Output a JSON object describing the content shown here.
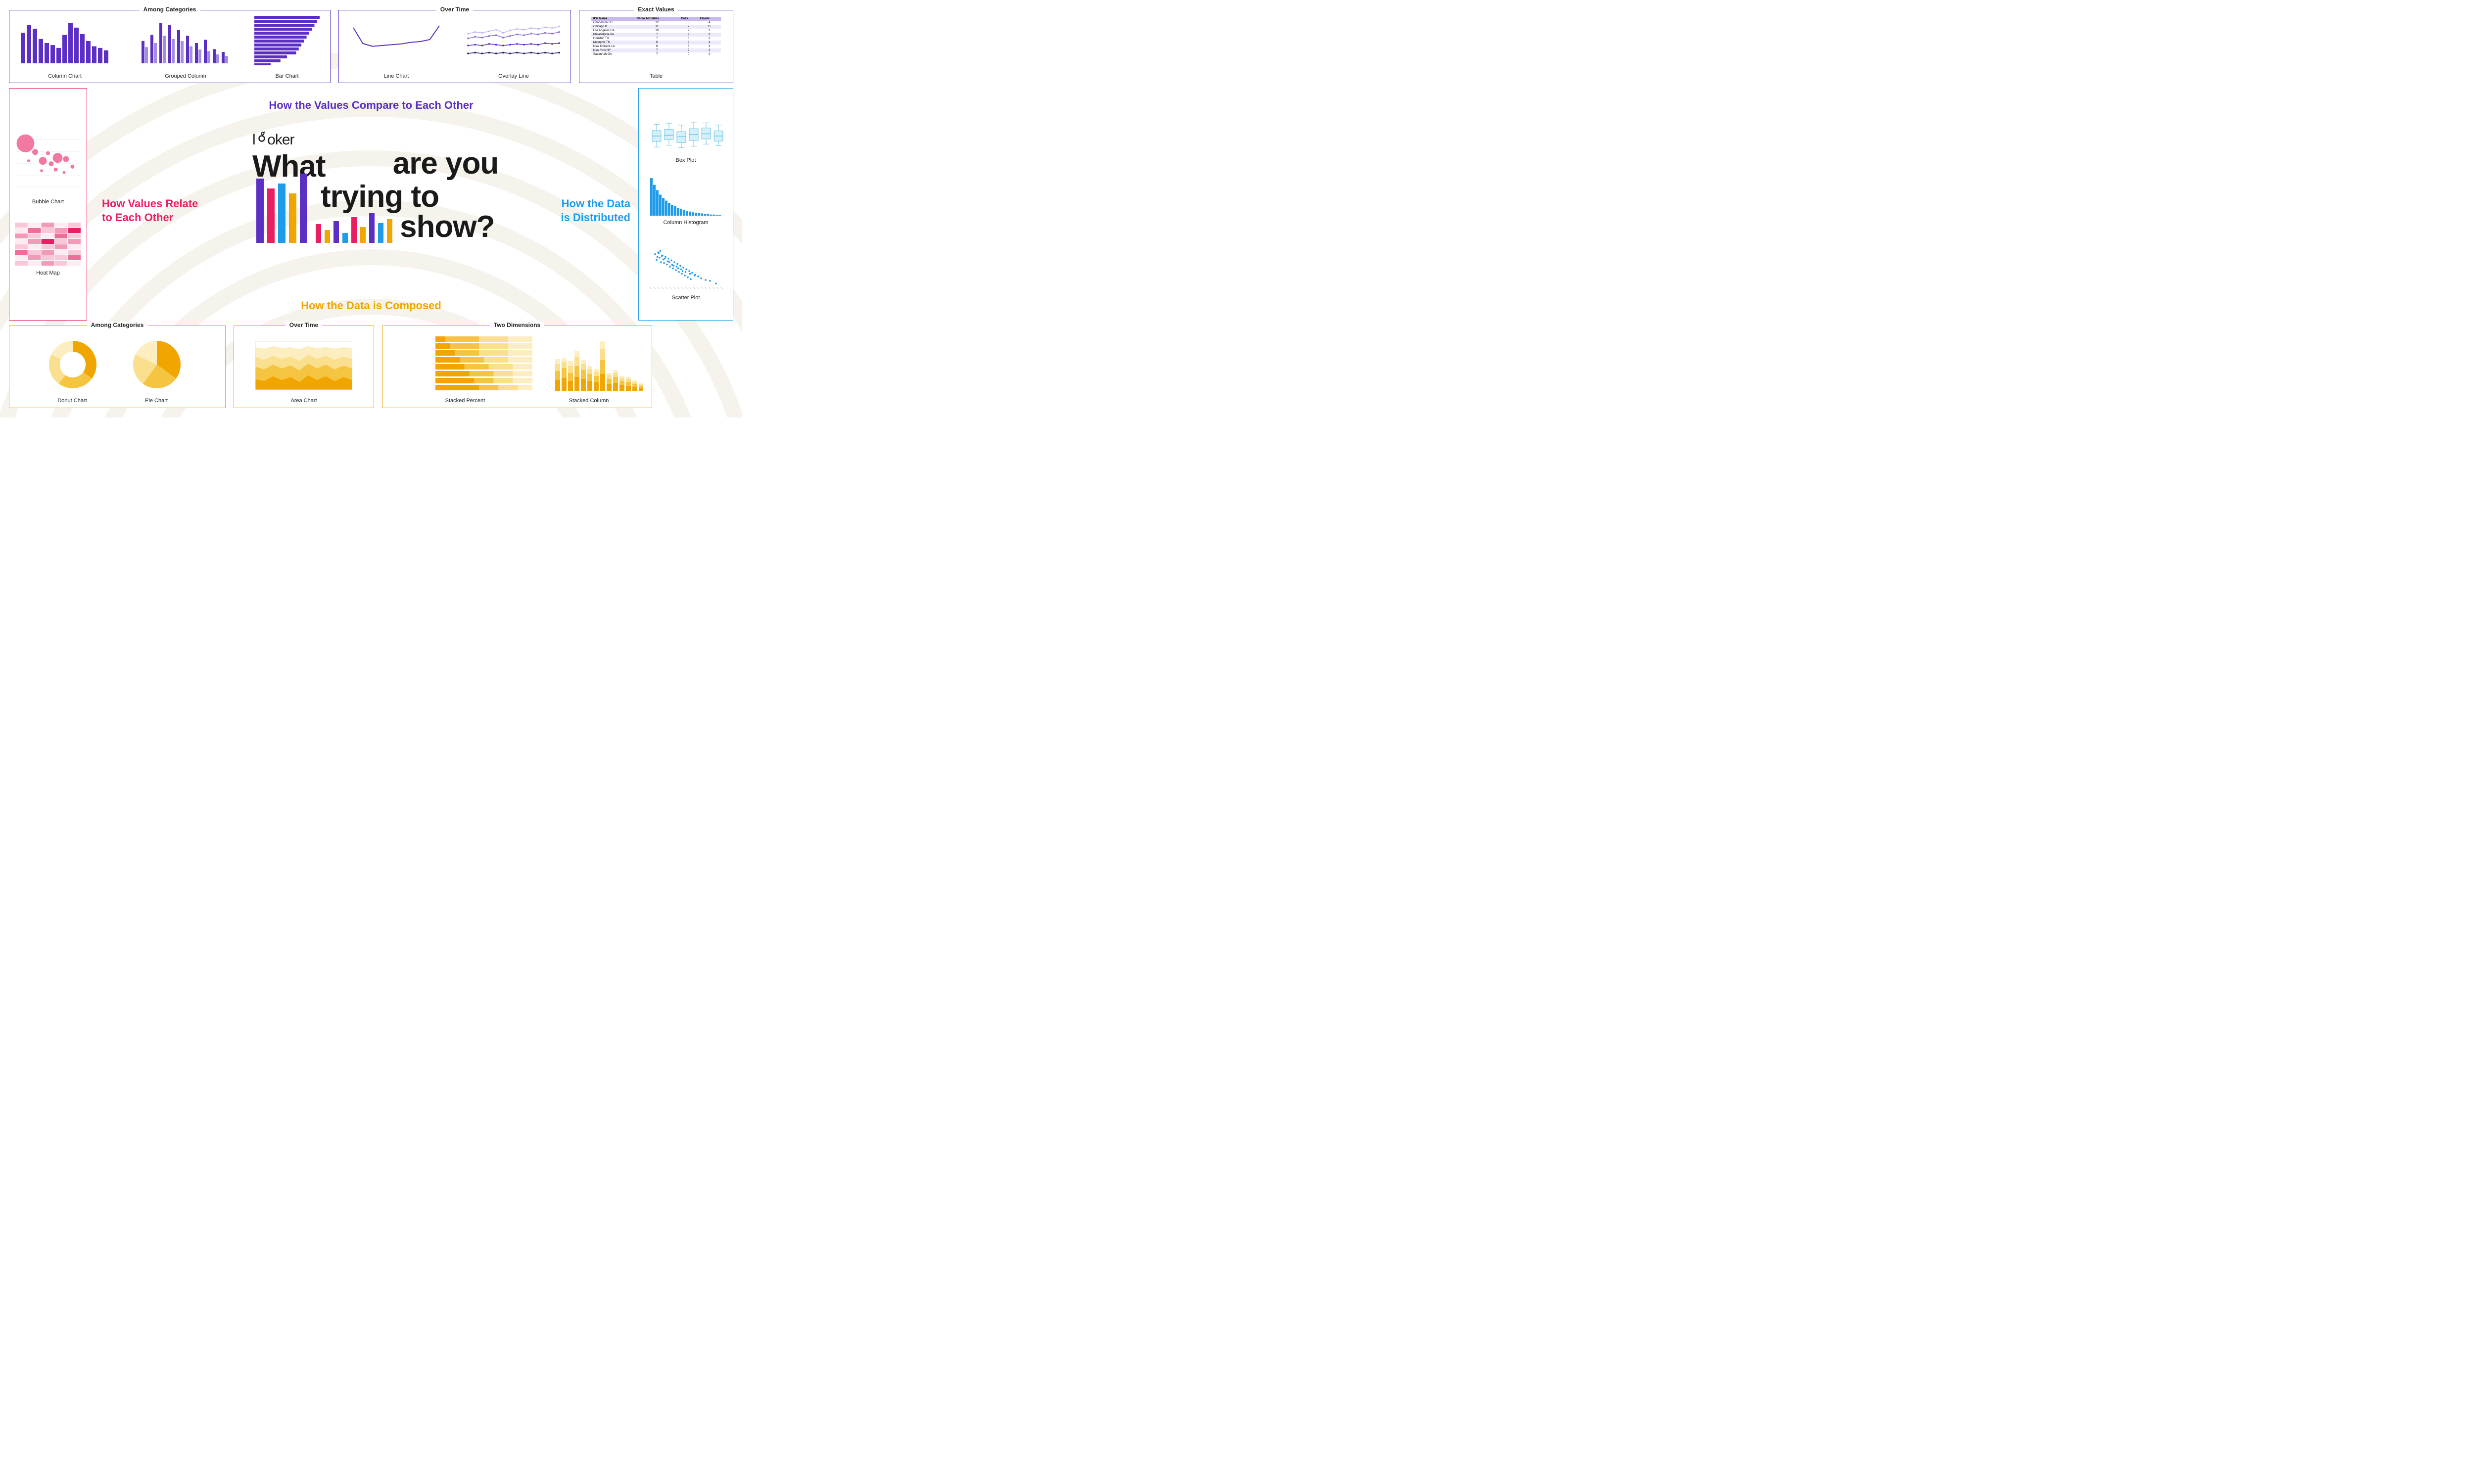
{
  "brand": "looker",
  "hero_line1": "What",
  "hero_line2": "are you",
  "hero_line3": "trying to",
  "hero_line4": "show?",
  "sections": {
    "compare": {
      "title": "How the Values Compare to Each Other",
      "color": "#5b2ec4"
    },
    "relate": {
      "title": "How Values Relate to Each Other",
      "color": "#e91e63"
    },
    "distrib": {
      "title": "How the Data is Distributed",
      "color": "#1e9be9"
    },
    "compose": {
      "title": "How the Data is Composed",
      "color": "#f0a500"
    }
  },
  "groups": {
    "compare_cat": "Among Categories",
    "compare_time": "Over Time",
    "compare_exact": "Exact Values",
    "compose_cat": "Among Categories",
    "compose_time": "Over Time",
    "compose_two": "Two Dimensions"
  },
  "charts": {
    "column": {
      "label": "Column Chart",
      "color": "#5b2ec4",
      "values": [
        75,
        95,
        85,
        60,
        50,
        45,
        38,
        70,
        100,
        88,
        72,
        55,
        42,
        38,
        32
      ]
    },
    "grouped": {
      "label": "Grouped Column",
      "colors": [
        "#5b2ec4",
        "#a48de0"
      ],
      "pairs": [
        [
          55,
          40
        ],
        [
          70,
          50
        ],
        [
          100,
          68
        ],
        [
          95,
          60
        ],
        [
          82,
          55
        ],
        [
          68,
          42
        ],
        [
          50,
          34
        ],
        [
          58,
          30
        ],
        [
          35,
          22
        ],
        [
          28,
          18
        ]
      ]
    },
    "bar": {
      "label": "Bar Chart",
      "color": "#5b2ec4",
      "values": [
        100,
        96,
        92,
        88,
        84,
        80,
        76,
        72,
        68,
        64,
        50,
        40,
        25
      ]
    },
    "line": {
      "label": "Line Chart",
      "color": "#5b2ec4",
      "points": [
        85,
        45,
        38,
        40,
        42,
        44,
        48,
        50,
        55,
        90
      ]
    },
    "overlay": {
      "label": "Overlay Line",
      "colors": [
        "#c7b8f0",
        "#8b6dd8",
        "#5b2ec4",
        "#2a1560"
      ],
      "series": [
        [
          70,
          74,
          72,
          76,
          80,
          72,
          78,
          82,
          80,
          84,
          82,
          86,
          84,
          88
        ],
        [
          58,
          62,
          60,
          64,
          66,
          60,
          64,
          68,
          66,
          70,
          68,
          72,
          70,
          74
        ],
        [
          40,
          42,
          40,
          44,
          42,
          40,
          42,
          44,
          42,
          44,
          42,
          46,
          44,
          46
        ],
        [
          20,
          22,
          20,
          22,
          20,
          22,
          20,
          22,
          20,
          22,
          20,
          22,
          20,
          22
        ]
      ]
    },
    "table": {
      "label": "Table",
      "header_bg": "#c7b8f0",
      "alt_bg": "#eee9fa",
      "columns": [
        "ICR Name",
        "Radio Activities",
        "Calls",
        "Emails"
      ],
      "rows": [
        [
          "Charleston SC",
          "12",
          "8",
          "4"
        ],
        [
          "Chicago IL",
          "11",
          "7",
          "15"
        ],
        [
          "Los Angeles CA",
          "10",
          "9",
          "3"
        ],
        [
          "Philadelphia PA",
          "7",
          "9",
          "0"
        ],
        [
          "Houston TX",
          "7",
          "5",
          "2"
        ],
        [
          "Memphis TN",
          "6",
          "9",
          "4"
        ],
        [
          "New Orleans LA",
          "6",
          "8",
          "3"
        ],
        [
          "New York NY",
          "7",
          "2",
          "2"
        ],
        [
          "Savannah GA",
          "7",
          "0",
          "0"
        ]
      ]
    },
    "bubble": {
      "label": "Bubble Chart",
      "color": "#f06292",
      "points": [
        [
          15,
          85,
          18
        ],
        [
          30,
          70,
          6
        ],
        [
          42,
          55,
          8
        ],
        [
          55,
          50,
          5
        ],
        [
          65,
          60,
          10
        ],
        [
          78,
          58,
          6
        ],
        [
          88,
          45,
          4
        ],
        [
          62,
          40,
          4
        ],
        [
          40,
          38,
          3
        ],
        [
          75,
          35,
          3
        ],
        [
          50,
          68,
          4
        ],
        [
          20,
          55,
          3
        ]
      ]
    },
    "heatmap": {
      "label": "Heat Map",
      "base": "#f8c7d8",
      "scale": [
        "#fdecf1",
        "#f8c7d8",
        "#f29bb9",
        "#ec6f99",
        "#e91e63"
      ],
      "grid": [
        [
          1,
          0,
          2,
          0,
          1
        ],
        [
          0,
          3,
          1,
          2,
          4
        ],
        [
          2,
          1,
          0,
          3,
          1
        ],
        [
          0,
          2,
          4,
          1,
          2
        ],
        [
          1,
          0,
          1,
          2,
          0
        ],
        [
          3,
          1,
          2,
          0,
          1
        ],
        [
          0,
          2,
          1,
          1,
          3
        ],
        [
          1,
          0,
          2,
          1,
          0
        ]
      ]
    },
    "boxplot": {
      "label": "Box Plot",
      "color": "#6bc5e8",
      "boxes": [
        [
          20,
          35,
          50,
          65,
          82
        ],
        [
          25,
          40,
          52,
          68,
          85
        ],
        [
          18,
          32,
          48,
          62,
          80
        ],
        [
          22,
          38,
          54,
          70,
          88
        ],
        [
          28,
          42,
          56,
          72,
          86
        ],
        [
          24,
          36,
          50,
          64,
          80
        ]
      ]
    },
    "histogram": {
      "label": "Column Histogram",
      "color": "#1e9be9",
      "values": [
        100,
        82,
        68,
        56,
        47,
        40,
        34,
        29,
        25,
        21,
        18,
        15,
        13,
        11,
        9,
        8,
        7,
        6,
        5,
        4,
        3,
        3,
        2,
        2
      ]
    },
    "scatter": {
      "label": "Scatter Plot",
      "color": "#1e9be9",
      "points": [
        [
          8,
          78
        ],
        [
          12,
          82
        ],
        [
          14,
          70
        ],
        [
          10,
          65
        ],
        [
          18,
          75
        ],
        [
          16,
          60
        ],
        [
          22,
          72
        ],
        [
          20,
          58
        ],
        [
          26,
          68
        ],
        [
          24,
          55
        ],
        [
          30,
          64
        ],
        [
          28,
          50
        ],
        [
          34,
          60
        ],
        [
          32,
          46
        ],
        [
          38,
          56
        ],
        [
          36,
          42
        ],
        [
          42,
          52
        ],
        [
          40,
          38
        ],
        [
          46,
          48
        ],
        [
          44,
          34
        ],
        [
          50,
          44
        ],
        [
          48,
          30
        ],
        [
          54,
          40
        ],
        [
          52,
          26
        ],
        [
          58,
          36
        ],
        [
          56,
          22
        ],
        [
          62,
          32
        ],
        [
          66,
          28
        ],
        [
          70,
          24
        ],
        [
          76,
          20
        ],
        [
          82,
          18
        ],
        [
          90,
          12
        ],
        [
          15,
          85
        ],
        [
          11,
          72
        ],
        [
          19,
          66
        ],
        [
          25,
          62
        ],
        [
          31,
          54
        ],
        [
          37,
          50
        ],
        [
          43,
          44
        ],
        [
          49,
          38
        ],
        [
          55,
          34
        ],
        [
          61,
          30
        ],
        [
          13,
          80
        ],
        [
          17,
          74
        ],
        [
          21,
          68
        ],
        [
          27,
          60
        ],
        [
          33,
          52
        ],
        [
          39,
          46
        ],
        [
          45,
          40
        ]
      ]
    },
    "donut": {
      "label": "Donut Chart",
      "colors": [
        "#f0a500",
        "#f5c542",
        "#fadf8e",
        "#fdeec2"
      ],
      "slices": [
        35,
        25,
        22,
        18
      ]
    },
    "pie": {
      "label": "Pie Chart",
      "colors": [
        "#f0a500",
        "#f5c542",
        "#fadf8e",
        "#fdeec2"
      ],
      "slices": [
        35,
        25,
        22,
        18
      ]
    },
    "area": {
      "label": "Area Chart",
      "colors": [
        "#fdeec2",
        "#fadf8e",
        "#f5c542",
        "#f0a500"
      ],
      "series": [
        [
          88,
          85,
          90,
          86,
          88,
          84,
          90,
          86,
          88,
          85,
          88,
          86
        ],
        [
          68,
          62,
          70,
          64,
          68,
          60,
          72,
          64,
          70,
          62,
          68,
          64
        ],
        [
          48,
          42,
          52,
          44,
          50,
          40,
          54,
          44,
          52,
          42,
          50,
          44
        ],
        [
          22,
          18,
          28,
          20,
          26,
          16,
          30,
          20,
          28,
          18,
          26,
          20
        ]
      ]
    },
    "stackpct": {
      "label": "Stacked Percent",
      "colors": [
        "#f0a500",
        "#f5c542",
        "#fadf8e",
        "#fdeec2"
      ],
      "rows": [
        [
          10,
          35,
          30,
          25
        ],
        [
          15,
          30,
          30,
          25
        ],
        [
          20,
          25,
          30,
          25
        ],
        [
          25,
          25,
          25,
          25
        ],
        [
          30,
          25,
          25,
          20
        ],
        [
          35,
          25,
          20,
          20
        ],
        [
          40,
          20,
          20,
          20
        ],
        [
          45,
          20,
          20,
          15
        ]
      ]
    },
    "stackcol": {
      "label": "Stacked Column",
      "colors": [
        "#f0a500",
        "#f5c542",
        "#fadf8e",
        "#fdeec2"
      ],
      "cols": [
        [
          22,
          18,
          14,
          10
        ],
        [
          26,
          20,
          12,
          8
        ],
        [
          20,
          16,
          14,
          10
        ],
        [
          28,
          22,
          18,
          12
        ],
        [
          24,
          18,
          12,
          8
        ],
        [
          20,
          14,
          10,
          6
        ],
        [
          18,
          12,
          8,
          6
        ],
        [
          34,
          28,
          22,
          16
        ],
        [
          14,
          10,
          8,
          4
        ],
        [
          16,
          12,
          8,
          6
        ],
        [
          12,
          8,
          6,
          4
        ],
        [
          10,
          8,
          6,
          4
        ],
        [
          8,
          6,
          4,
          3
        ],
        [
          6,
          4,
          3,
          2
        ]
      ]
    }
  },
  "hero_bars": {
    "tall": {
      "heights": [
        130,
        110,
        120,
        100,
        140
      ],
      "colors": [
        "#5b2ec4",
        "#e91e63",
        "#1e9be9",
        "#f0a500",
        "#5b2ec4"
      ],
      "width": 15
    },
    "short": {
      "heights": [
        38,
        26,
        44,
        20,
        52,
        32,
        60,
        40,
        48
      ],
      "colors": [
        "#e91e63",
        "#f0a500",
        "#5b2ec4",
        "#1e9be9",
        "#e91e63",
        "#f0a500",
        "#5b2ec4",
        "#1e9be9",
        "#f0a500"
      ],
      "width": 11
    }
  }
}
